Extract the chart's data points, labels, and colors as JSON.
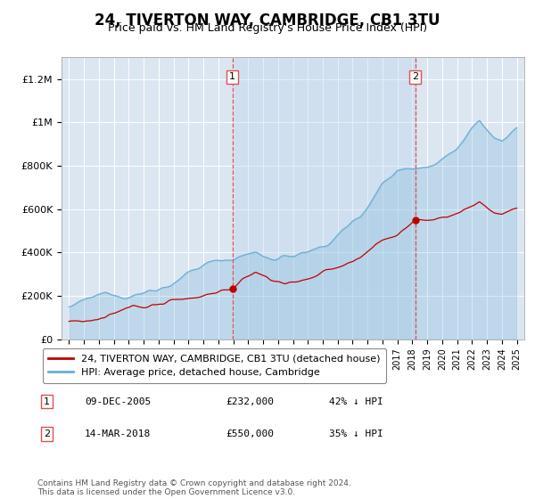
{
  "title": "24, TIVERTON WAY, CAMBRIDGE, CB1 3TU",
  "subtitle": "Price paid vs. HM Land Registry's House Price Index (HPI)",
  "footer": "Contains HM Land Registry data © Crown copyright and database right 2024.\nThis data is licensed under the Open Government Licence v3.0.",
  "legend_line1": "24, TIVERTON WAY, CAMBRIDGE, CB1 3TU (detached house)",
  "legend_line2": "HPI: Average price, detached house, Cambridge",
  "sale1_date": "09-DEC-2005",
  "sale1_price": 232000,
  "sale1_label": "42% ↓ HPI",
  "sale1_x": 2005.94,
  "sale2_date": "14-MAR-2018",
  "sale2_price": 550000,
  "sale2_label": "35% ↓ HPI",
  "sale2_x": 2018.2,
  "xlim": [
    1994.5,
    2025.5
  ],
  "ylim": [
    0,
    1300000
  ],
  "yticks": [
    0,
    200000,
    400000,
    600000,
    800000,
    1000000,
    1200000
  ],
  "ytick_labels": [
    "£0",
    "£200K",
    "£400K",
    "£600K",
    "£800K",
    "£1M",
    "£1.2M"
  ],
  "hpi_color": "#6aaed6",
  "hpi_fill_color": "#c8dff0",
  "property_color": "#c00000",
  "vline_color": "#e05050",
  "plot_bg_color": "#dce6f1",
  "fig_bg_color": "#ffffff",
  "grid_color": "#ffffff",
  "title_fontsize": 12,
  "subtitle_fontsize": 9
}
